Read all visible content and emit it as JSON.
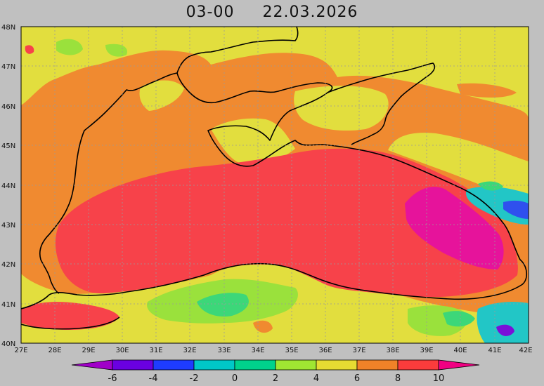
{
  "title": {
    "time": "03-00",
    "date": "22.03.2026"
  },
  "axes": {
    "lon_ticks": [
      "27E",
      "28E",
      "29E",
      "30E",
      "31E",
      "32E",
      "33E",
      "34E",
      "35E",
      "36E",
      "37E",
      "38E",
      "39E",
      "40E",
      "41E",
      "42E"
    ],
    "lat_ticks": [
      "48N",
      "47N",
      "46N",
      "45N",
      "44N",
      "43N",
      "42N",
      "41N",
      "40N"
    ],
    "lon_range": [
      27,
      42
    ],
    "lat_range": [
      40,
      48
    ]
  },
  "colorbar": {
    "labels": [
      "-6",
      "-4",
      "-2",
      "0",
      "2",
      "4",
      "6",
      "8",
      "10"
    ],
    "colors": [
      "#a000c8",
      "#6a00e0",
      "#1e3cff",
      "#00c8c8",
      "#00d28c",
      "#a0e632",
      "#e6dc32",
      "#f08228",
      "#fa3c3c",
      "#f00082"
    ]
  },
  "palette": {
    "deep_pink": "#e6139b",
    "red": "#f7424a",
    "orange": "#f08a30",
    "yellow": "#e2de3e",
    "light_green": "#9ae13c",
    "green": "#3cd779",
    "cyan": "#22c6c6",
    "blue": "#2f50ee",
    "purple": "#7a10d8",
    "coast": "#000000",
    "grid": "#9a9a9a",
    "background": "#c0c0c0"
  }
}
